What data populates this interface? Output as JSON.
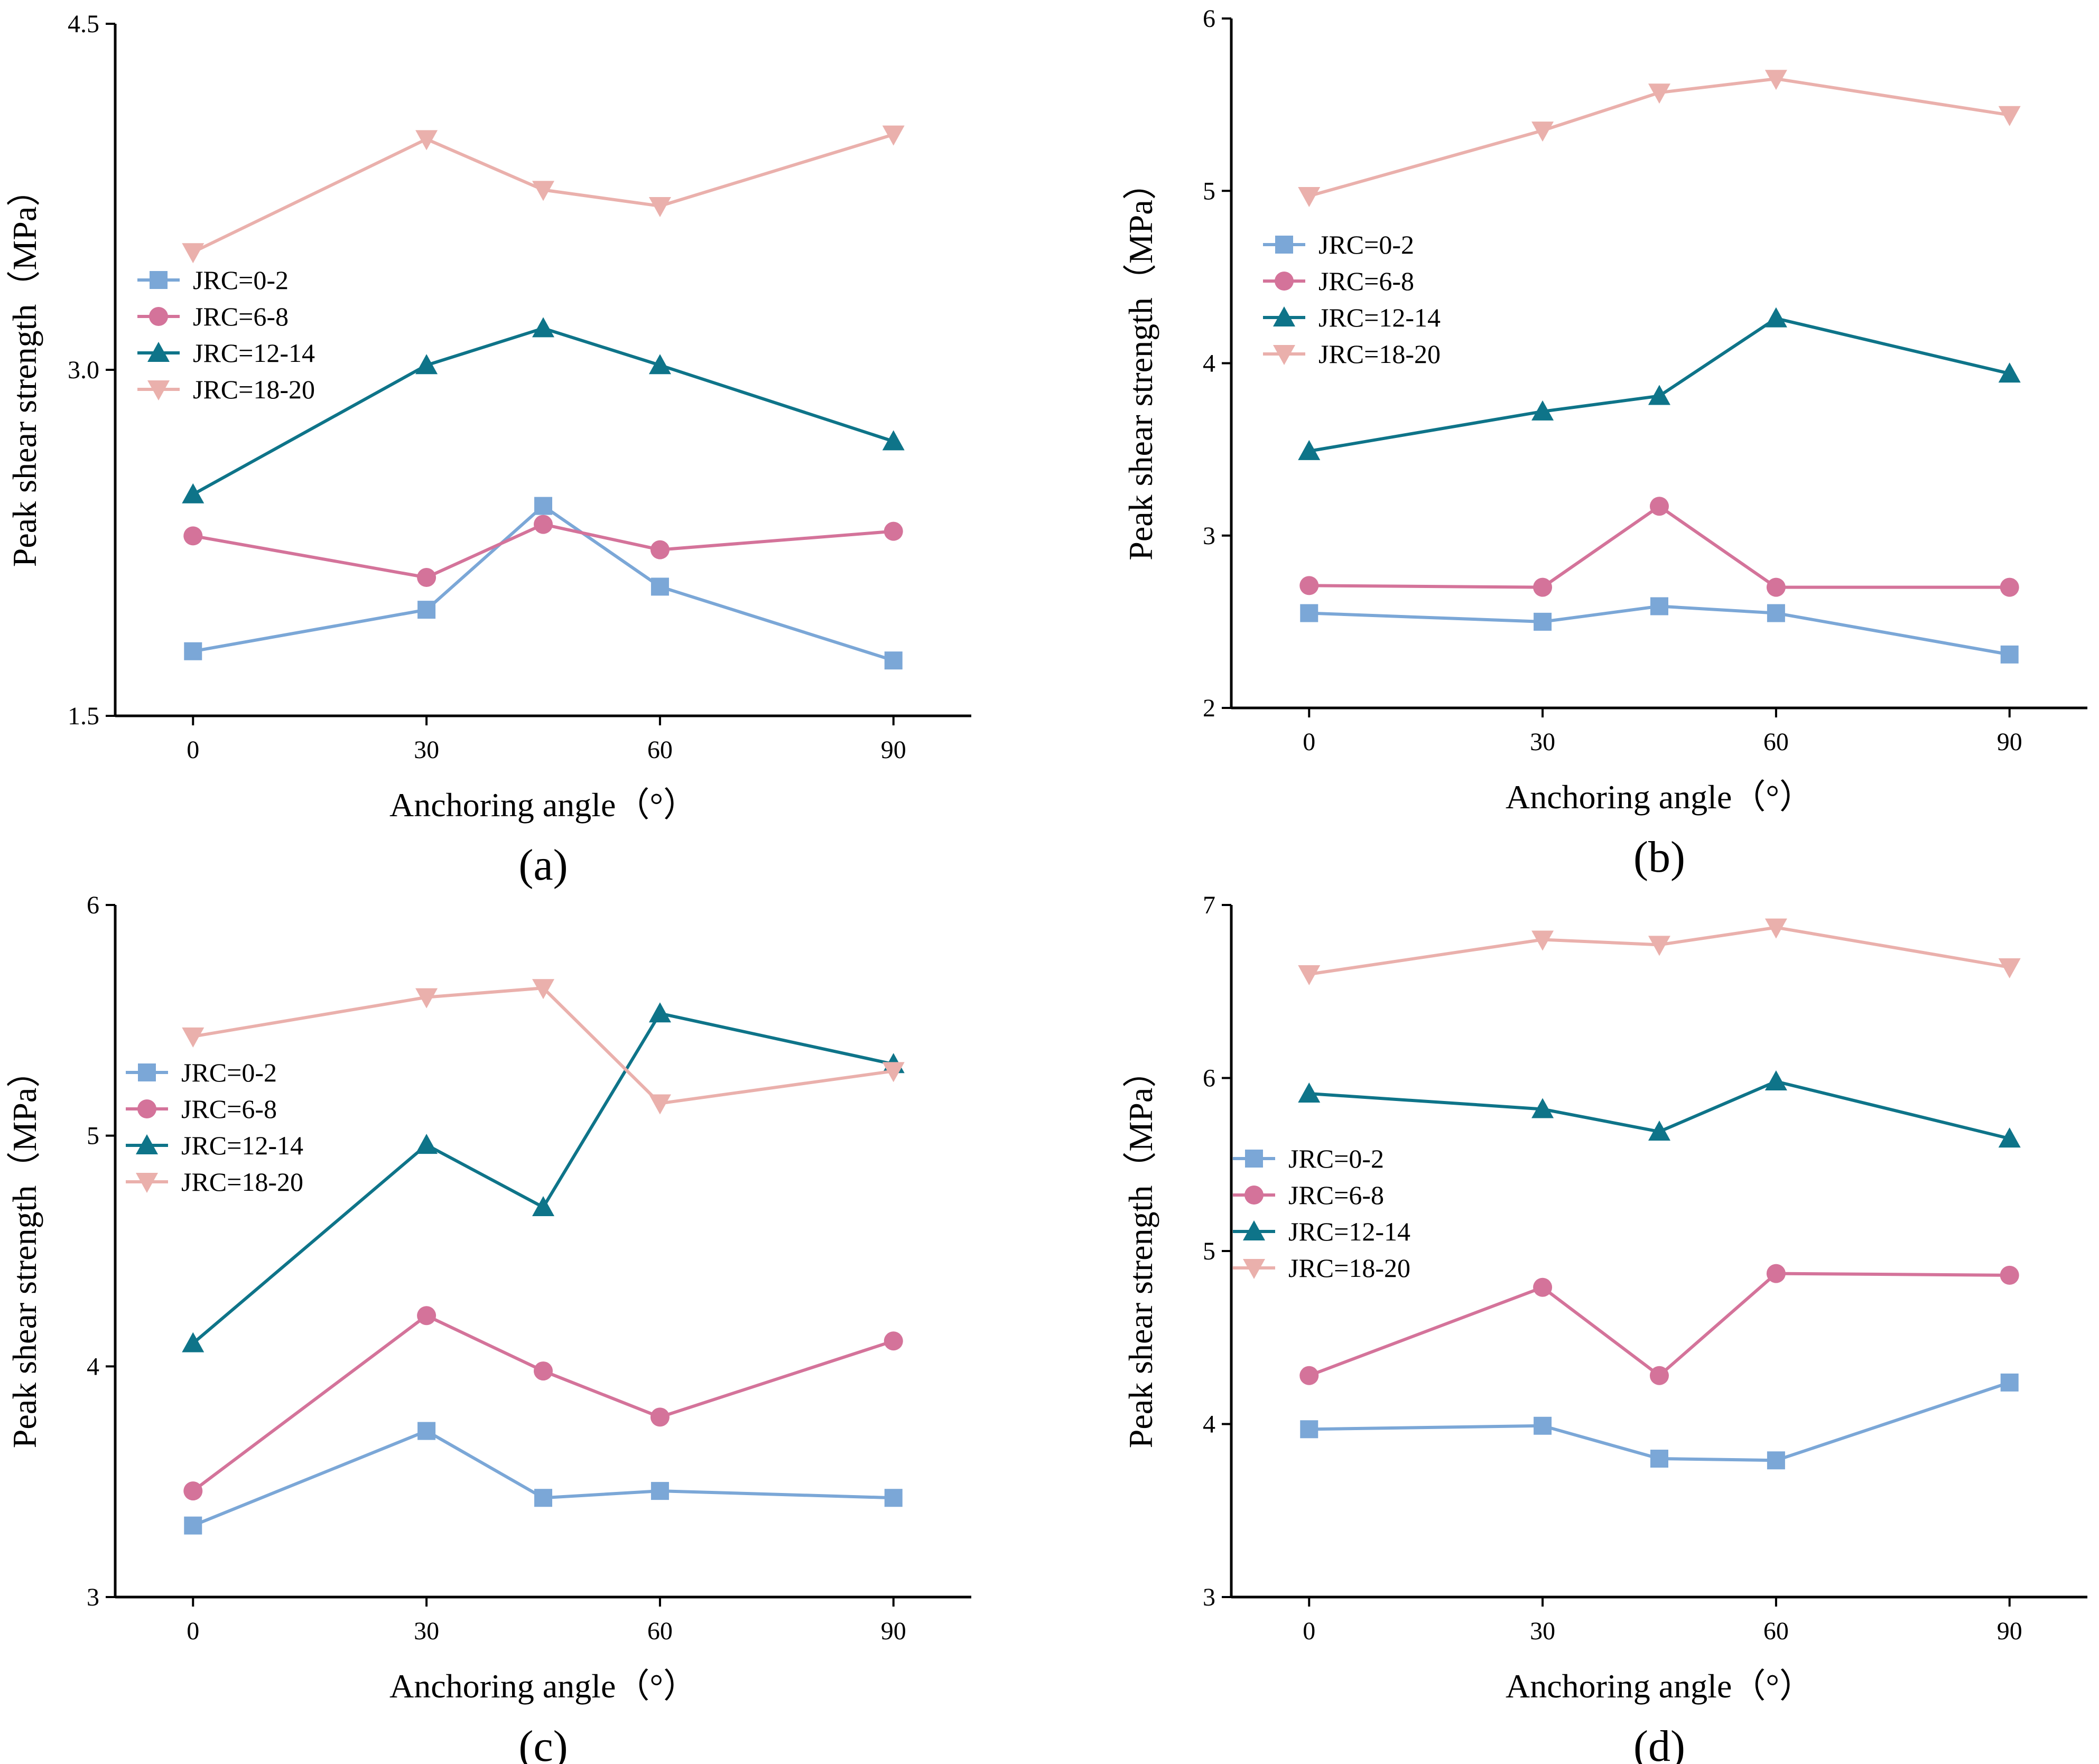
{
  "chart_data": [
    {
      "type": "line",
      "panel_label": "(a)",
      "xlabel": "Anchoring angle（°）",
      "ylabel": "Peak shear strength（MPa）",
      "x": [
        0,
        30,
        45,
        60,
        90
      ],
      "xticks": [
        0,
        30,
        60,
        90
      ],
      "xtick_labels": [
        "0",
        "30",
        "60",
        "90"
      ],
      "xlim": [
        -10,
        100
      ],
      "ylim": [
        1.5,
        4.5
      ],
      "yticks": [
        1.5,
        3.0,
        4.5
      ],
      "ytick_labels": [
        "1.5",
        "3.0",
        "4.5"
      ],
      "legend_position": "left",
      "series": [
        {
          "name": "JRC=0-2",
          "color": "#7BA7D7",
          "marker": "square",
          "values": [
            1.78,
            1.96,
            2.41,
            2.06,
            1.74
          ]
        },
        {
          "name": "JRC=6-8",
          "color": "#D4739A",
          "marker": "circle",
          "values": [
            2.28,
            2.1,
            2.33,
            2.22,
            2.3
          ]
        },
        {
          "name": "JRC=12-14",
          "color": "#0E7489",
          "marker": "triangle-up",
          "values": [
            2.46,
            3.02,
            3.18,
            3.02,
            2.69
          ]
        },
        {
          "name": "JRC=18-20",
          "color": "#EAB0AC",
          "marker": "triangle-down",
          "values": [
            3.51,
            4.0,
            3.78,
            3.71,
            4.02
          ]
        }
      ]
    },
    {
      "type": "line",
      "panel_label": "(b)",
      "xlabel": "Anchoring angle（°）",
      "ylabel": "Peak shear strength（MPa）",
      "x": [
        0,
        30,
        45,
        60,
        90
      ],
      "xticks": [
        0,
        30,
        60,
        90
      ],
      "xtick_labels": [
        "0",
        "30",
        "60",
        "90"
      ],
      "xlim": [
        -10,
        100
      ],
      "ylim": [
        2,
        6
      ],
      "yticks": [
        2,
        3,
        4,
        5,
        6
      ],
      "ytick_labels": [
        "2",
        "3",
        "4",
        "5",
        "6"
      ],
      "legend_position": "upper-left",
      "series": [
        {
          "name": "JRC=0-2",
          "color": "#7BA7D7",
          "marker": "square",
          "values": [
            2.55,
            2.5,
            2.59,
            2.55,
            2.31
          ]
        },
        {
          "name": "JRC=6-8",
          "color": "#D4739A",
          "marker": "circle",
          "values": [
            2.71,
            2.7,
            3.17,
            2.7,
            2.7
          ]
        },
        {
          "name": "JRC=12-14",
          "color": "#0E7489",
          "marker": "triangle-up",
          "values": [
            3.49,
            3.72,
            3.81,
            4.26,
            3.94
          ]
        },
        {
          "name": "JRC=18-20",
          "color": "#EAB0AC",
          "marker": "triangle-down",
          "values": [
            4.97,
            5.35,
            5.57,
            5.65,
            5.44
          ]
        }
      ]
    },
    {
      "type": "line",
      "panel_label": "(c)",
      "xlabel": "Anchoring angle（°）",
      "ylabel": "Peak shear strength（MPa）",
      "x": [
        0,
        30,
        45,
        60,
        90
      ],
      "xticks": [
        0,
        30,
        60,
        90
      ],
      "xtick_labels": [
        "0",
        "30",
        "60",
        "90"
      ],
      "xlim": [
        -10,
        100
      ],
      "ylim": [
        3,
        6
      ],
      "yticks": [
        3,
        4,
        5,
        6
      ],
      "ytick_labels": [
        "3",
        "4",
        "5",
        "6"
      ],
      "legend_position": "left",
      "series": [
        {
          "name": "JRC=0-2",
          "color": "#7BA7D7",
          "marker": "square",
          "values": [
            3.31,
            3.72,
            3.43,
            3.46,
            3.43
          ]
        },
        {
          "name": "JRC=6-8",
          "color": "#D4739A",
          "marker": "circle",
          "values": [
            3.46,
            4.22,
            3.98,
            3.78,
            4.11
          ]
        },
        {
          "name": "JRC=12-14",
          "color": "#0E7489",
          "marker": "triangle-up",
          "values": [
            4.1,
            4.96,
            4.69,
            5.53,
            5.31
          ]
        },
        {
          "name": "JRC=18-20",
          "color": "#EAB0AC",
          "marker": "triangle-down",
          "values": [
            5.43,
            5.6,
            5.64,
            5.14,
            5.28
          ]
        }
      ]
    },
    {
      "type": "line",
      "panel_label": "(d)",
      "xlabel": "Anchoring angle（°）",
      "ylabel": "Peak shear strength（MPa）",
      "x": [
        0,
        30,
        45,
        60,
        90
      ],
      "xticks": [
        0,
        30,
        60,
        90
      ],
      "xtick_labels": [
        "0",
        "30",
        "60",
        "90"
      ],
      "xlim": [
        -10,
        100
      ],
      "ylim": [
        3,
        7
      ],
      "yticks": [
        3,
        4,
        5,
        6,
        7
      ],
      "ytick_labels": [
        "3",
        "4",
        "5",
        "6",
        "7"
      ],
      "legend_position": "left",
      "series": [
        {
          "name": "JRC=0-2",
          "color": "#7BA7D7",
          "marker": "square",
          "values": [
            3.97,
            3.99,
            3.8,
            3.79,
            4.24
          ]
        },
        {
          "name": "JRC=6-8",
          "color": "#D4739A",
          "marker": "circle",
          "values": [
            4.28,
            4.79,
            4.28,
            4.87,
            4.86
          ]
        },
        {
          "name": "JRC=12-14",
          "color": "#0E7489",
          "marker": "triangle-up",
          "values": [
            5.91,
            5.82,
            5.69,
            5.98,
            5.65
          ]
        },
        {
          "name": "JRC=18-20",
          "color": "#EAB0AC",
          "marker": "triangle-down",
          "values": [
            6.6,
            6.8,
            6.77,
            6.87,
            6.64
          ]
        }
      ]
    }
  ]
}
